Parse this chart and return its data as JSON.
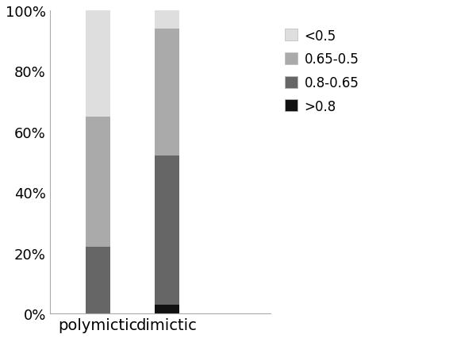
{
  "categories": [
    "polymictic",
    "dimictic"
  ],
  "segments": {
    ">0.8": [
      0.0,
      0.03
    ],
    "0.8-0.65": [
      0.22,
      0.49
    ],
    "0.65-0.5": [
      0.43,
      0.42
    ],
    "<0.5": [
      0.35,
      0.06
    ]
  },
  "colors": {
    ">0.8": "#111111",
    "0.8-0.65": "#666666",
    "0.65-0.5": "#aaaaaa",
    "<0.5": "#dedede"
  },
  "legend_labels": [
    "<0.5",
    "0.65-0.5",
    "0.8-0.65",
    ">0.8"
  ],
  "legend_colors": [
    "#dedede",
    "#aaaaaa",
    "#666666",
    "#111111"
  ],
  "bar_width": 0.35,
  "bar_positions": [
    1,
    2
  ],
  "xlim": [
    0.3,
    3.5
  ],
  "ylim": [
    0,
    1.0
  ],
  "yticks": [
    0.0,
    0.2,
    0.4,
    0.6,
    0.8,
    1.0
  ],
  "ytick_labels": [
    "0%",
    "20%",
    "40%",
    "60%",
    "80%",
    "100%"
  ],
  "background_color": "#ffffff",
  "spine_color": "#aaaaaa"
}
